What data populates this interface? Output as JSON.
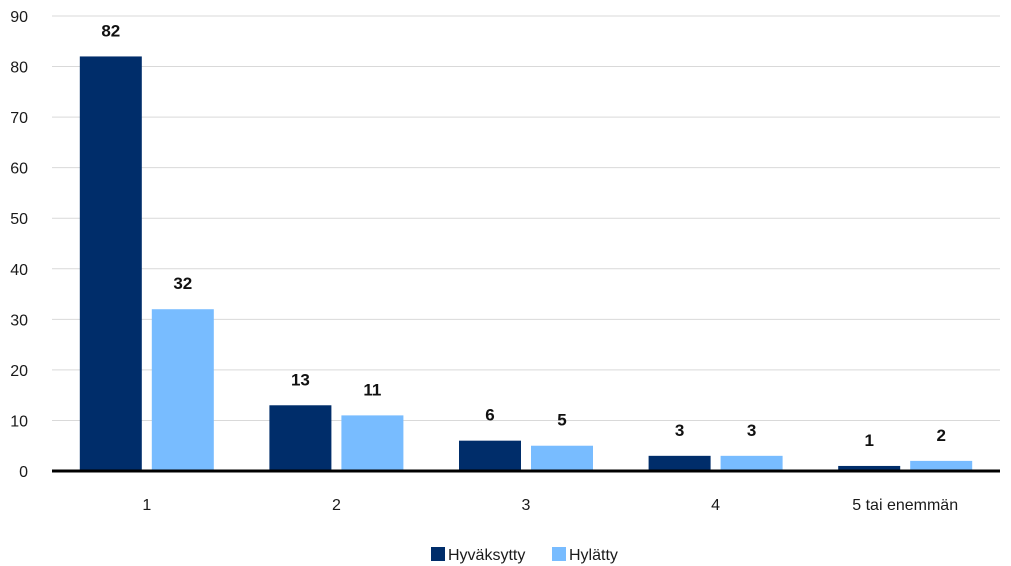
{
  "chart_data": {
    "type": "bar",
    "title": "",
    "xlabel": "",
    "ylabel": "",
    "categories": [
      "1",
      "2",
      "3",
      "4",
      "5 tai enemmän"
    ],
    "series": [
      {
        "name": "Hyväksytty",
        "color": "#002d6a",
        "values": [
          82,
          13,
          6,
          3,
          1
        ]
      },
      {
        "name": "Hylätty",
        "color": "#78bcff",
        "values": [
          32,
          11,
          5,
          3,
          2
        ]
      }
    ],
    "ylim": [
      0,
      90
    ],
    "yticks": [
      0,
      10,
      20,
      30,
      40,
      50,
      60,
      70,
      80,
      90
    ],
    "grid": true,
    "data_labels": true,
    "legend_position": "bottom-center"
  }
}
